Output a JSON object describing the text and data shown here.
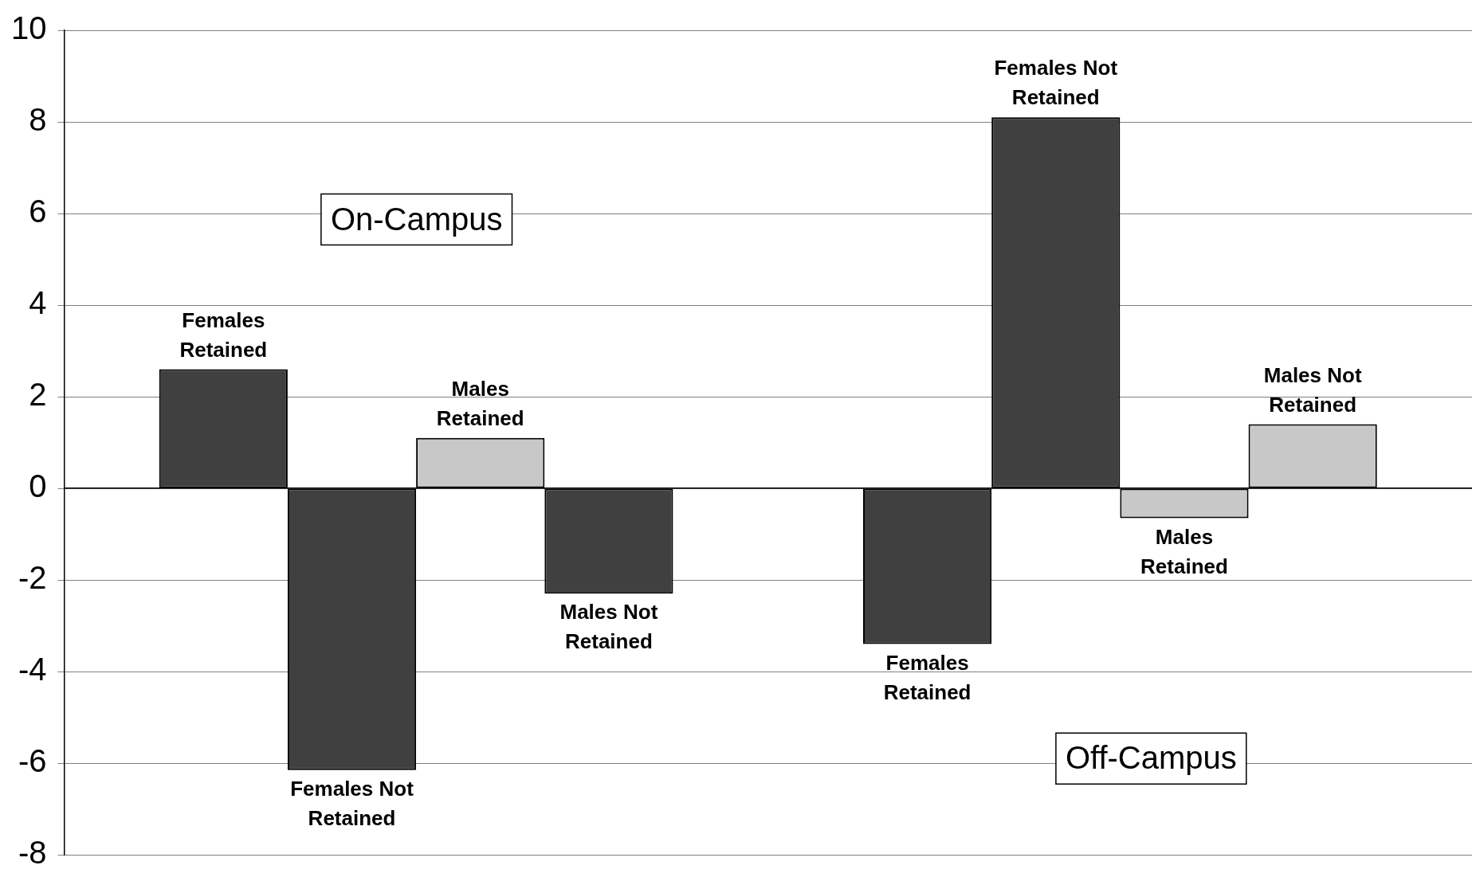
{
  "chart_data": {
    "type": "bar",
    "categories": [
      null,
      null
    ],
    "series": [
      {
        "name": "Females Retained",
        "colors": [
          "#404040",
          "#404040"
        ],
        "values": [
          2.6,
          -3.4
        ]
      },
      {
        "name": "Females Not Retained",
        "colors": [
          "#404040",
          "#404040"
        ],
        "values": [
          -6.15,
          8.1
        ]
      },
      {
        "name": "Males Retained",
        "colors": [
          "#c8c8c8",
          "#c8c8c8"
        ],
        "values": [
          1.1,
          -0.65
        ]
      },
      {
        "name": "Males Not Retained",
        "colors": [
          "#404040",
          "#c8c8c8"
        ],
        "values": [
          -2.3,
          1.4
        ]
      }
    ],
    "ylim": [
      -8,
      10
    ],
    "yticks": [
      -8,
      -6,
      -4,
      -2,
      0,
      2,
      4,
      6,
      8,
      10
    ],
    "grid": "y",
    "legend": false,
    "annotations": [
      "On-Campus",
      "Off-Campus"
    ]
  }
}
